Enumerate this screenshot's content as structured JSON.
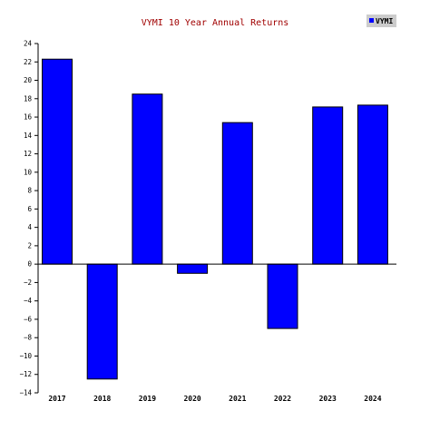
{
  "chart_data": {
    "type": "bar",
    "title": "VYMI 10 Year Annual Returns",
    "xlabel": "",
    "ylabel": "",
    "categories": [
      "2017",
      "2018",
      "2019",
      "2020",
      "2021",
      "2022",
      "2023",
      "2024"
    ],
    "series": [
      {
        "name": "VYMI",
        "values": [
          22.3,
          -12.5,
          18.5,
          -1.0,
          15.4,
          -7.0,
          17.1,
          17.3
        ],
        "color": "#0000ff"
      }
    ],
    "ylim": [
      -14,
      24
    ],
    "yticks": [
      "24",
      "22",
      "20",
      "18",
      "16",
      "14",
      "12",
      "10",
      "8",
      "6",
      "4",
      "2",
      "0",
      "−2",
      "−4",
      "−6",
      "−8",
      "−10",
      "−12",
      "−14"
    ],
    "grid": false,
    "legend_position": "top-right"
  },
  "colors": {
    "bar": "#0000ff",
    "bar_outline": "#000000",
    "title": "#a00000",
    "legend_bg": "#cccccc"
  }
}
